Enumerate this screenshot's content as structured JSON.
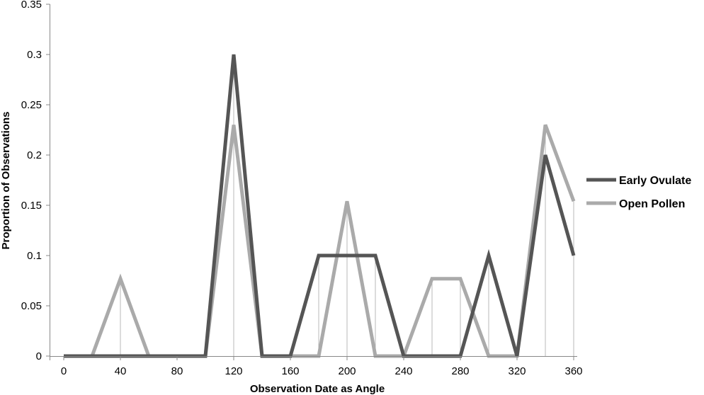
{
  "chart_data": {
    "type": "line",
    "title": "",
    "xlabel": "Observation Date as Angle",
    "ylabel": "Proportion of Observations",
    "x": [
      0,
      20,
      40,
      60,
      80,
      100,
      120,
      140,
      160,
      180,
      200,
      220,
      240,
      260,
      280,
      300,
      320,
      340,
      360
    ],
    "x_ticks": [
      "0",
      "40",
      "80",
      "120",
      "160",
      "200",
      "240",
      "280",
      "320",
      "360"
    ],
    "y_ticks": [
      "0",
      "0.05",
      "0.1",
      "0.15",
      "0.2",
      "0.25",
      "0.3",
      "0.35"
    ],
    "xlim": [
      0,
      360
    ],
    "ylim": [
      0,
      0.35
    ],
    "grid": false,
    "drop_lines": true,
    "legend_position": "right",
    "series": [
      {
        "name": "Early Ovulate",
        "color": "#555555",
        "values": [
          0,
          0,
          0,
          0,
          0,
          0,
          0.3,
          0,
          0,
          0.1,
          0.1,
          0.1,
          0,
          0,
          0,
          0.1,
          0,
          0.2,
          0.1
        ]
      },
      {
        "name": "Open Pollen",
        "color": "#aaaaaa",
        "values": [
          0,
          0,
          0.077,
          0,
          0,
          0,
          0.23,
          0,
          0,
          0,
          0.154,
          0,
          0,
          0.077,
          0.077,
          0,
          0,
          0.23,
          0.154
        ]
      }
    ]
  }
}
